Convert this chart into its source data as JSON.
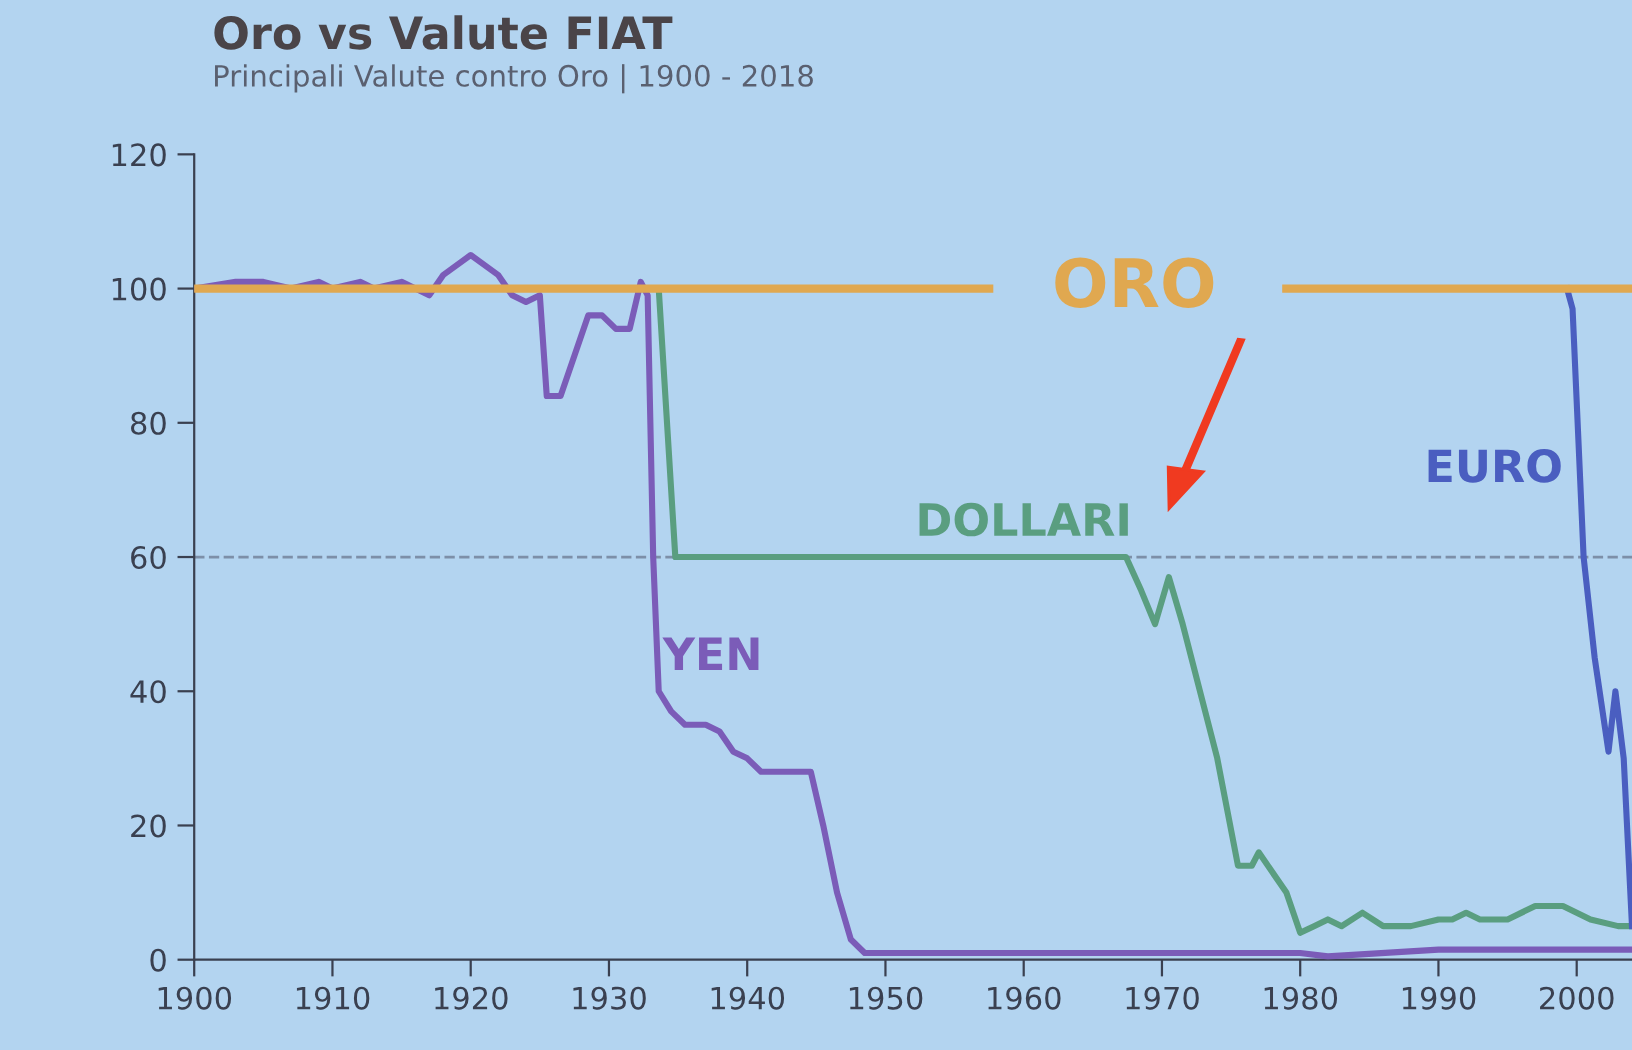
{
  "chart_data": {
    "type": "line",
    "title": "Oro vs Valute FIAT",
    "subtitle": "Principali Valute contro Oro | 1900 - 2018",
    "xlim": [
      1900,
      2004
    ],
    "xticks": [
      1900,
      1910,
      1920,
      1930,
      1940,
      1950,
      1960,
      1970,
      1980,
      1990,
      2000
    ],
    "ylim": [
      0,
      120
    ],
    "yticks": [
      0,
      20,
      40,
      60,
      80,
      100,
      120
    ],
    "grid": false,
    "legend": false,
    "ref_lines": [
      {
        "axis": "y",
        "value": 60,
        "color": "#7d8fa8",
        "line_style": "dashed"
      }
    ],
    "series": [
      {
        "name": "ORO",
        "color": "#e0a850",
        "x": [
          1900,
          1957.5,
          1968,
          1979,
          2004
        ],
        "values": [
          100,
          100,
          null,
          100,
          100
        ]
      },
      {
        "name": "DOLLARI",
        "color": "#5a9e80",
        "x": [
          1900,
          1933.6,
          1934.8,
          1967.4,
          1968.5,
          1969.5,
          1970.5,
          1971.5,
          1974,
          1975.5,
          1976.5,
          1977,
          1979,
          1980,
          1981,
          1982,
          1983,
          1984.5,
          1986,
          1988,
          1990,
          1991,
          1992,
          1993,
          1995,
          1997,
          1999,
          2001,
          2003,
          2004
        ],
        "values": [
          100,
          100,
          60,
          60,
          55,
          50,
          57,
          50,
          30,
          14,
          14,
          16,
          10,
          4,
          5,
          6,
          5,
          7,
          5,
          5,
          6,
          6,
          7,
          6,
          6,
          8,
          8,
          6,
          5,
          5
        ]
      },
      {
        "name": "YEN",
        "color": "#7b5cb8",
        "x": [
          1900,
          1903,
          1905,
          1907,
          1909,
          1910,
          1912,
          1913,
          1915,
          1916,
          1917,
          1918,
          1920,
          1922,
          1923,
          1924,
          1925,
          1925.5,
          1926.5,
          1927.5,
          1928.5,
          1929.5,
          1930.5,
          1931.5,
          1932.3,
          1932.8,
          1933.2,
          1933.6,
          1934.5,
          1935.5,
          1937,
          1938,
          1939,
          1940,
          1941,
          1944.6,
          1945.5,
          1946.5,
          1947.5,
          1948.5,
          1980,
          1982,
          1990,
          2004
        ],
        "values": [
          100,
          101,
          101,
          100,
          101,
          100,
          101,
          100,
          101,
          100,
          99,
          102,
          105,
          102,
          99,
          98,
          99,
          84,
          84,
          90,
          96,
          96,
          94,
          94,
          101,
          99,
          60,
          40,
          37,
          35,
          35,
          34,
          31,
          30,
          28,
          28,
          20,
          10,
          3,
          1,
          1,
          0.5,
          1.5,
          1.5
        ]
      },
      {
        "name": "EURO",
        "color": "#4a5ec0",
        "x": [
          1999.3,
          1999.7,
          2000.5,
          2001.3,
          2002.3,
          2002.8,
          2003.4,
          2004
        ],
        "values": [
          100,
          97,
          60,
          45,
          31,
          40,
          30,
          5
        ]
      }
    ]
  }
}
